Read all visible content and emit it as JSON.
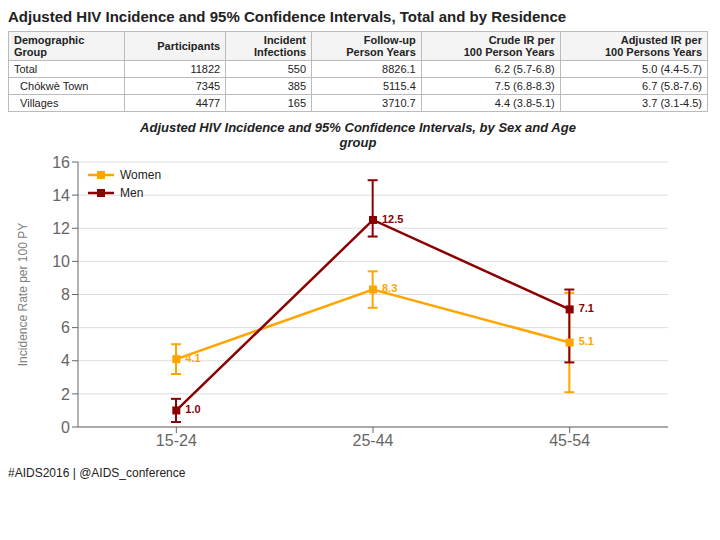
{
  "chart_data": {
    "type": "line",
    "title": "Adjusted HIV Incidence and 95% Confidence Intervals, Total and by Residence",
    "table": {
      "headers": [
        "Demographic\nGroup",
        "Participants",
        "Incident\nInfections",
        "Follow-up\nPerson Years",
        "Crude IR per\n100 Person Years",
        "Adjusted IR per\n100 Persons Years"
      ],
      "rows": [
        [
          "Total",
          "11822",
          "550",
          "8826.1",
          "6.2 (5.7-6.8)",
          "5.0 (4.4-5.7)"
        ],
        [
          "  Chókwè Town",
          "7345",
          "385",
          "5115.4",
          "7.5 (6.8-8.3)",
          "6.7 (5.8-7.6)"
        ],
        [
          "  Villages",
          "4477",
          "165",
          "3710.7",
          "4.4 (3.8-5.1)",
          "3.7 (3.1-4.5)"
        ]
      ]
    },
    "subtitle": "Adjusted HIV Incidence and 95% Confidence Intervals, by Sex and Age\ngroup",
    "categories": [
      "15-24",
      "25-44",
      "45-54"
    ],
    "series": [
      {
        "name": "Women",
        "color": "#FFA500",
        "marker": "square",
        "values": [
          4.1,
          8.3,
          5.1
        ],
        "value_labels": [
          "4.1",
          "8.3",
          "5.1"
        ],
        "ci_low": [
          3.2,
          7.2,
          2.1
        ],
        "ci_high": [
          5.0,
          9.4,
          8.1
        ]
      },
      {
        "name": "Men",
        "color": "#8B0000",
        "marker": "square",
        "values": [
          1.0,
          12.5,
          7.1
        ],
        "value_labels": [
          "1.0",
          "12.5",
          "7.1"
        ],
        "ci_low": [
          0.3,
          11.5,
          3.9
        ],
        "ci_high": [
          1.7,
          14.9,
          8.3
        ]
      }
    ],
    "ylabel": "Incidence Rate per 100 PY",
    "ylim": [
      0,
      16
    ],
    "yticks": [
      0,
      2,
      4,
      6,
      8,
      10,
      12,
      14,
      16
    ],
    "grid": true,
    "legend": "upper left",
    "data_labels": true,
    "footer": "#AIDS2016 | @AIDS_conference"
  }
}
